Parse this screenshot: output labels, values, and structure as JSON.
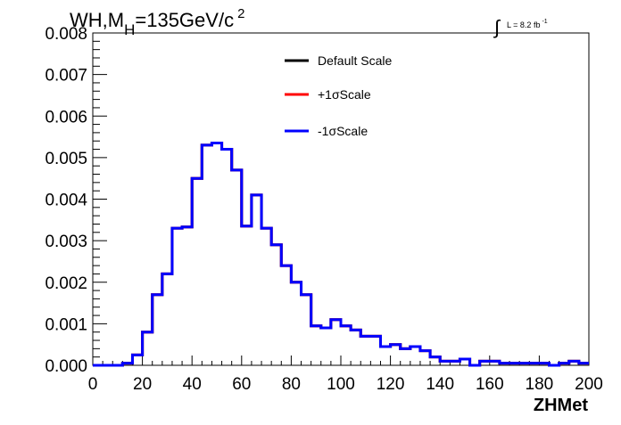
{
  "chart_data": {
    "type": "line",
    "title": "WH,M",
    "title_sub": "H",
    "title_rest": "=135GeV/c",
    "title_sup": "2",
    "lumi_label": "L = 8.2 fb",
    "lumi_sup": "-1",
    "xlabel": "ZHMet",
    "ylabel": "",
    "xlim": [
      0,
      200
    ],
    "ylim": [
      0,
      0.008
    ],
    "xticks": [
      "0",
      "20",
      "40",
      "60",
      "80",
      "100",
      "120",
      "140",
      "160",
      "180",
      "200"
    ],
    "yticks": [
      "0.000",
      "0.001",
      "0.002",
      "0.003",
      "0.004",
      "0.005",
      "0.006",
      "0.007",
      "0.008"
    ],
    "bin_edges_start": 0,
    "bin_width": 4,
    "grid": false,
    "legend_position": "top-center",
    "series": [
      {
        "name": "Default Scale",
        "color": "#000000",
        "values": [
          0,
          0,
          0,
          5e-05,
          0.00025,
          0.0008,
          0.0017,
          0.0022,
          0.0033,
          0.00333,
          0.0045,
          0.0053,
          0.00535,
          0.0052,
          0.0047,
          0.00335,
          0.0041,
          0.0033,
          0.0029,
          0.0024,
          0.002,
          0.0017,
          0.00095,
          0.0009,
          0.0011,
          0.00095,
          0.00085,
          0.0007,
          0.0007,
          0.00045,
          0.0005,
          0.0004,
          0.00045,
          0.00035,
          0.0002,
          0.0001,
          0.0001,
          0.00015,
          0,
          0.0001,
          0.0001,
          5e-05,
          5e-05,
          5e-05,
          5e-05,
          5e-05,
          0,
          5e-05,
          0.0001,
          5e-05
        ]
      },
      {
        "name": "+1σScale",
        "color": "#ff0000",
        "values": [
          0,
          0,
          0,
          5e-05,
          0.00025,
          0.0008,
          0.0017,
          0.0022,
          0.0033,
          0.00333,
          0.0045,
          0.0053,
          0.00535,
          0.0052,
          0.0047,
          0.00335,
          0.0041,
          0.0033,
          0.0029,
          0.0024,
          0.002,
          0.0017,
          0.00095,
          0.0009,
          0.0011,
          0.00095,
          0.00085,
          0.0007,
          0.0007,
          0.00045,
          0.0005,
          0.0004,
          0.00045,
          0.00035,
          0.0002,
          0.0001,
          0.0001,
          0.00015,
          0,
          0.0001,
          0.0001,
          5e-05,
          5e-05,
          5e-05,
          5e-05,
          5e-05,
          0,
          5e-05,
          0.0001,
          5e-05
        ]
      },
      {
        "name": "-1σScale",
        "color": "#0000ff",
        "values": [
          0,
          0,
          0,
          5e-05,
          0.00025,
          0.0008,
          0.0017,
          0.0022,
          0.0033,
          0.00333,
          0.0045,
          0.0053,
          0.00535,
          0.0052,
          0.0047,
          0.00335,
          0.0041,
          0.0033,
          0.0029,
          0.0024,
          0.002,
          0.0017,
          0.00095,
          0.0009,
          0.0011,
          0.00095,
          0.00085,
          0.0007,
          0.0007,
          0.00045,
          0.0005,
          0.0004,
          0.00045,
          0.00035,
          0.0002,
          0.0001,
          0.0001,
          0.00015,
          0,
          0.0001,
          0.0001,
          5e-05,
          5e-05,
          5e-05,
          5e-05,
          5e-05,
          0,
          5e-05,
          0.0001,
          5e-05
        ]
      }
    ]
  }
}
